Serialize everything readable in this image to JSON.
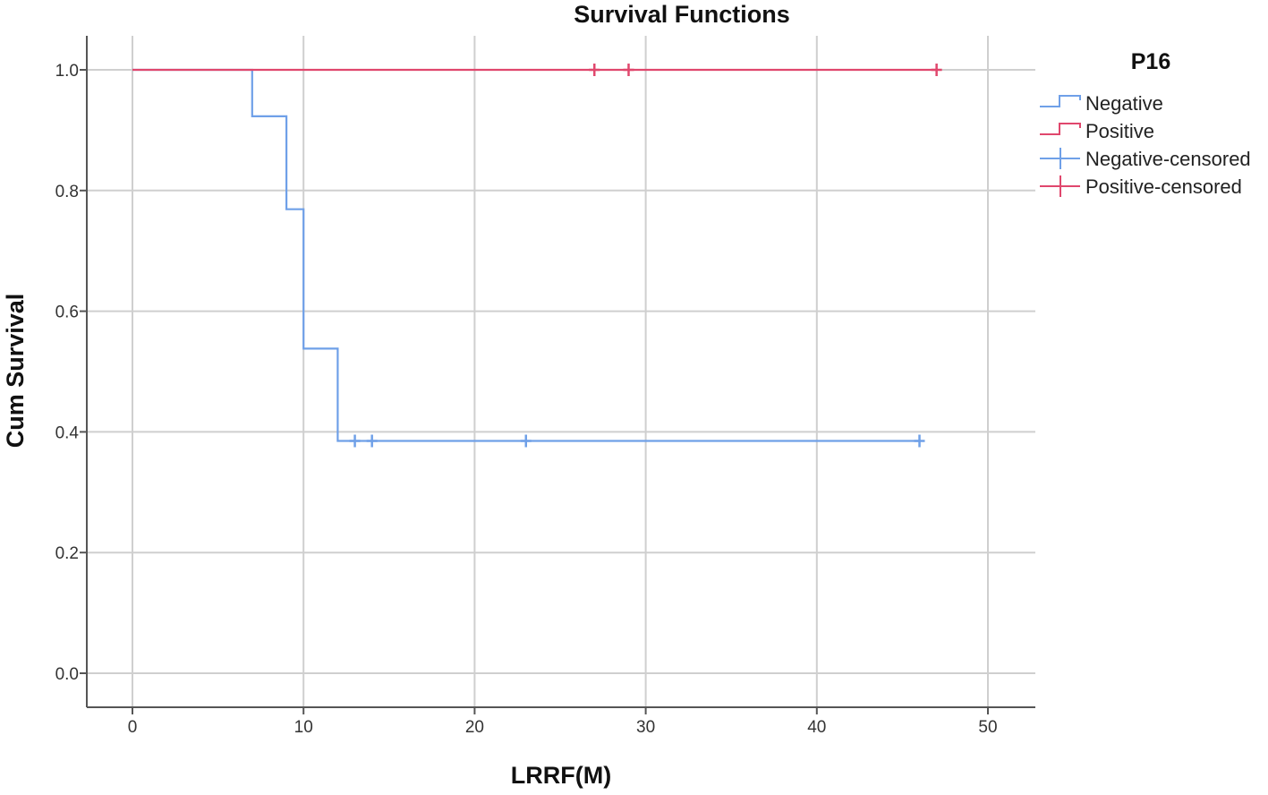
{
  "chart_data": {
    "type": "line",
    "title": "Survival Functions",
    "xlabel": "LRRF(M)",
    "ylabel": "Cum Survival",
    "xlim": [
      0,
      50
    ],
    "ylim": [
      0.0,
      1.0
    ],
    "x_ticks": [
      0,
      10,
      20,
      30,
      40,
      50
    ],
    "y_ticks": [
      "0.0",
      "0.2",
      "0.4",
      "0.6",
      "0.8",
      "1.0"
    ],
    "grid": true,
    "legend": {
      "title": "P16",
      "position": "right",
      "entries": [
        "Negative",
        "Positive",
        "Negative-censored",
        "Positive-censored"
      ]
    },
    "series": [
      {
        "name": "Negative",
        "color": "#6fa0e8",
        "step": true,
        "points": [
          [
            0,
            1.0
          ],
          [
            7,
            1.0
          ],
          [
            7,
            0.923
          ],
          [
            9,
            0.923
          ],
          [
            9,
            0.769
          ],
          [
            10,
            0.769
          ],
          [
            10,
            0.538
          ],
          [
            12,
            0.538
          ],
          [
            12,
            0.385
          ],
          [
            46,
            0.385
          ]
        ],
        "censored": [
          [
            13,
            0.385
          ],
          [
            14,
            0.385
          ],
          [
            23,
            0.385
          ],
          [
            46,
            0.385
          ]
        ]
      },
      {
        "name": "Positive",
        "color": "#e0476d",
        "step": true,
        "points": [
          [
            0,
            1.0
          ],
          [
            47,
            1.0
          ]
        ],
        "censored": [
          [
            27,
            1.0
          ],
          [
            29,
            1.0
          ],
          [
            47,
            1.0
          ]
        ]
      }
    ]
  }
}
